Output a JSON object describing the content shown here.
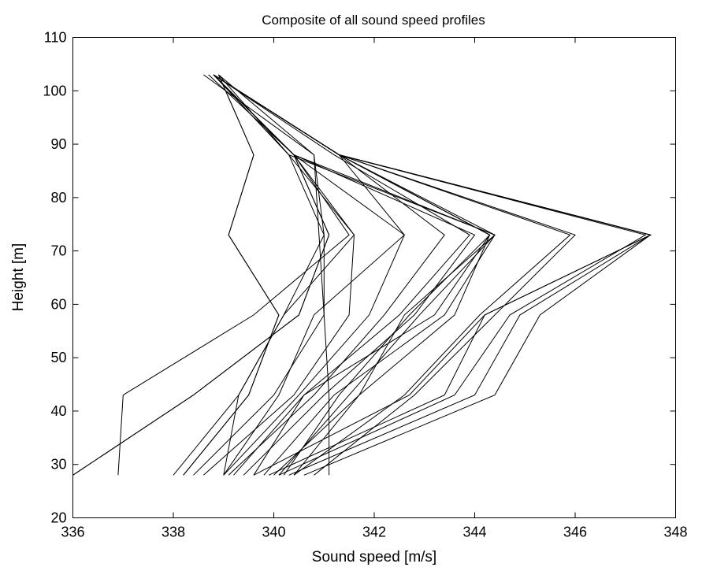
{
  "chart_data": {
    "type": "line",
    "title": "Composite of all sound speed profiles",
    "xlabel": "Sound speed [m/s]",
    "ylabel": "Height [m]",
    "xlim": [
      336,
      348
    ],
    "ylim": [
      20,
      110
    ],
    "xticks": [
      336,
      338,
      340,
      342,
      344,
      346,
      348
    ],
    "yticks": [
      20,
      30,
      40,
      50,
      60,
      70,
      80,
      90,
      100,
      110
    ],
    "grid": false,
    "legend": "none",
    "line_color": "#000000",
    "heights": [
      28,
      43,
      58,
      73,
      88,
      103
    ],
    "series": [
      {
        "values": [
          336.0,
          338.4,
          340.5,
          341.1,
          340.4,
          338.8
        ]
      },
      {
        "values": [
          336.0,
          338.4,
          340.5,
          341.1,
          340.4,
          338.8
        ]
      },
      {
        "values": [
          336.9,
          337.0,
          339.6,
          341.5,
          340.4,
          338.7
        ]
      },
      {
        "values": [
          338.0,
          339.3,
          340.2,
          341.0,
          340.3,
          338.8
        ]
      },
      {
        "values": [
          338.2,
          339.5,
          340.1,
          339.1,
          339.6,
          338.9
        ]
      },
      {
        "values": [
          338.2,
          339.5,
          340.1,
          339.1,
          339.6,
          338.9
        ]
      },
      {
        "values": [
          338.4,
          340.0,
          341.0,
          341.0,
          340.8,
          338.9
        ]
      },
      {
        "values": [
          338.6,
          340.4,
          341.5,
          341.6,
          340.3,
          338.9
        ]
      },
      {
        "values": [
          339.0,
          339.3,
          340.2,
          341.6,
          340.4,
          338.8
        ]
      },
      {
        "values": [
          339.0,
          340.1,
          340.8,
          342.6,
          341.3,
          338.8
        ]
      },
      {
        "values": [
          339.0,
          340.5,
          341.9,
          342.6,
          340.4,
          338.8
        ]
      },
      {
        "values": [
          339.1,
          340.8,
          342.2,
          343.4,
          341.3,
          338.8
        ]
      },
      {
        "values": [
          339.2,
          340.6,
          342.5,
          343.9,
          341.2,
          338.8
        ]
      },
      {
        "values": [
          339.4,
          341.0,
          342.8,
          344.0,
          340.4,
          338.8
        ]
      },
      {
        "values": [
          339.6,
          340.6,
          343.2,
          344.3,
          341.3,
          338.8
        ]
      },
      {
        "values": [
          339.8,
          341.2,
          343.4,
          344.4,
          341.3,
          338.8
        ]
      },
      {
        "values": [
          340.0,
          341.7,
          343.6,
          344.3,
          341.3,
          338.8
        ]
      },
      {
        "values": [
          340.1,
          341.5,
          342.9,
          344.4,
          340.4,
          338.8
        ]
      },
      {
        "values": [
          340.2,
          341.3,
          342.7,
          344.3,
          341.3,
          338.8
        ]
      },
      {
        "values": [
          340.4,
          341.7,
          342.6,
          344.4,
          340.3,
          338.8
        ]
      },
      {
        "values": [
          340.4,
          342.6,
          344.1,
          345.9,
          341.3,
          338.8
        ]
      },
      {
        "values": [
          340.8,
          342.8,
          344.4,
          346.0,
          341.3,
          338.8
        ]
      },
      {
        "values": [
          339.6,
          342.7,
          344.2,
          347.5,
          341.3,
          338.8
        ]
      },
      {
        "values": [
          339.9,
          343.4,
          344.2,
          347.5,
          341.3,
          338.8
        ]
      },
      {
        "values": [
          340.1,
          343.6,
          344.7,
          347.4,
          341.3,
          338.8
        ]
      },
      {
        "values": [
          340.3,
          344.0,
          344.9,
          347.5,
          341.3,
          338.8
        ]
      },
      {
        "values": [
          340.6,
          344.4,
          345.3,
          347.5,
          341.3,
          338.8
        ]
      },
      {
        "values": [
          341.1,
          341.1,
          341.0,
          340.9,
          340.8,
          338.6
        ]
      }
    ]
  }
}
